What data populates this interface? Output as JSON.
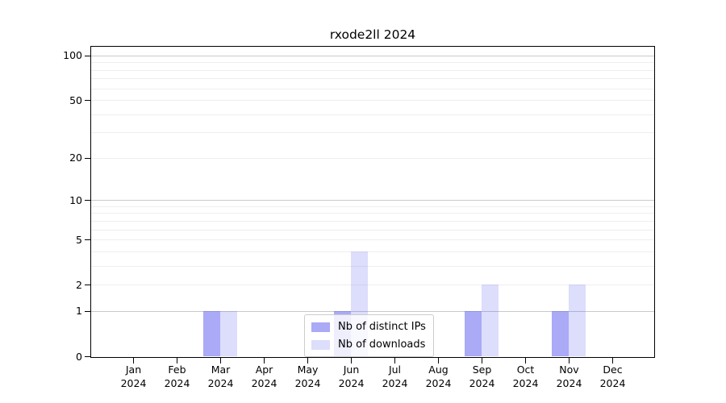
{
  "chart_data": {
    "type": "bar",
    "title": "rxode2ll 2024",
    "categories": [
      "Jan 2024",
      "Feb 2024",
      "Mar 2024",
      "Apr 2024",
      "May 2024",
      "Jun 2024",
      "Jul 2024",
      "Aug 2024",
      "Sep 2024",
      "Oct 2024",
      "Nov 2024",
      "Dec 2024"
    ],
    "series": [
      {
        "name": "Nb of distinct IPs",
        "color": "rgba(85,85,238,0.5)",
        "values": [
          0,
          0,
          1,
          0,
          0,
          1,
          0,
          0,
          1,
          0,
          1,
          0
        ]
      },
      {
        "name": "Nb of downloads",
        "color": "rgba(85,85,238,0.2)",
        "values": [
          0,
          0,
          1,
          0,
          0,
          4,
          0,
          0,
          2,
          0,
          2,
          0
        ]
      }
    ],
    "xlabel": "",
    "ylabel": "",
    "yscale": "log1p",
    "ylim": [
      0,
      113
    ],
    "y_ticks": [
      0,
      1,
      2,
      5,
      10,
      20,
      50,
      100
    ],
    "y_gridlines_major": [
      1,
      10,
      100
    ],
    "y_gridlines_minor": [
      2,
      3,
      4,
      5,
      6,
      7,
      8,
      9,
      20,
      30,
      40,
      50,
      60,
      70,
      80,
      90
    ],
    "grid": true,
    "legend_position": "lower center"
  },
  "colors": {
    "grid_minor": "#eeeef2",
    "grid_major": "#c9c9ce",
    "axis": "#000000",
    "legend_border": "#cccccc",
    "background": "#ffffff"
  }
}
